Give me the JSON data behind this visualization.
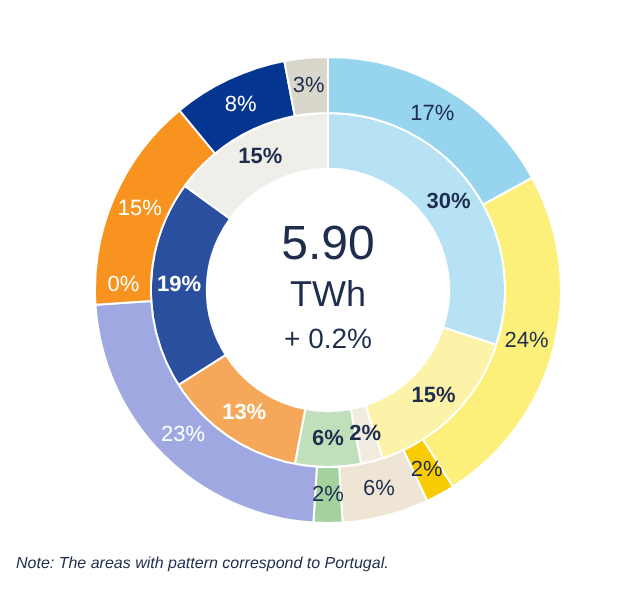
{
  "chart_data": {
    "type": "donut",
    "categories": [
      null,
      null,
      null,
      null,
      null,
      null,
      null,
      null,
      null,
      null
    ],
    "series": [
      {
        "values": [
          17,
          24,
          2,
          6,
          2,
          23,
          0,
          15,
          8,
          3
        ],
        "colors": [
          "#97d5ee",
          "#fdf07a",
          "#f8cc00",
          "#efe5d5",
          "#a3d29e",
          "#9fa8e0",
          "#f7931e",
          "#f7931e",
          "#043591",
          "#d9d6cc"
        ],
        "value_labels": [
          "17%",
          "24%",
          "2%",
          "6%",
          "2%",
          "23%",
          "0%",
          "15%",
          "8%",
          "3%"
        ]
      },
      {
        "values": [
          30,
          15,
          null,
          2,
          6,
          null,
          null,
          13,
          19,
          15
        ],
        "colors": [
          "#b6e2f3",
          "#fdf3a8",
          "#f8cc00",
          "#f1ebe0",
          "#bfe0bb",
          "#9fa8e0",
          "#f7931e",
          "#f5a85a",
          "#2a4f9e",
          "#efeee8"
        ],
        "value_labels": [
          "30%",
          "15%",
          null,
          "2%",
          "6%",
          null,
          null,
          "13%",
          "19%",
          "15%"
        ]
      }
    ],
    "annotations": [
      "5.90",
      "TWh",
      "+ 0.2%",
      "Note: The areas with pattern correspond to Portugal."
    ]
  }
}
